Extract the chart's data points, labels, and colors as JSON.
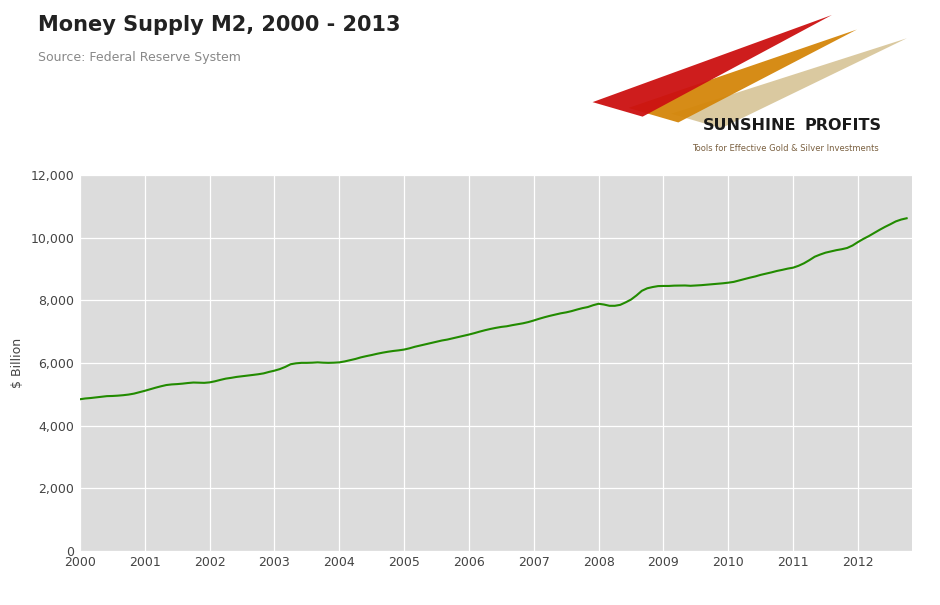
{
  "title": "Money Supply M2, 2000 - 2013",
  "source": "Source: Federal Reserve System",
  "ylabel": "$ Billion",
  "line_color": "#228B00",
  "bg_color": "#DCDCDC",
  "fig_bg_color": "#FFFFFF",
  "xlim": [
    2000,
    2012.83
  ],
  "ylim": [
    0,
    12000
  ],
  "yticks": [
    0,
    2000,
    4000,
    6000,
    8000,
    10000,
    12000
  ],
  "xticks": [
    2000,
    2001,
    2002,
    2003,
    2004,
    2005,
    2006,
    2007,
    2008,
    2009,
    2010,
    2011,
    2012
  ],
  "logo_text1": "SUNSHINE",
  "logo_text2": "PROFITS",
  "logo_subtext": "Tools for Effective Gold & Silver Investments",
  "data": {
    "x": [
      2000.0,
      2000.083,
      2000.167,
      2000.25,
      2000.333,
      2000.417,
      2000.5,
      2000.583,
      2000.667,
      2000.75,
      2000.833,
      2000.917,
      2001.0,
      2001.083,
      2001.167,
      2001.25,
      2001.333,
      2001.417,
      2001.5,
      2001.583,
      2001.667,
      2001.75,
      2001.833,
      2001.917,
      2002.0,
      2002.083,
      2002.167,
      2002.25,
      2002.333,
      2002.417,
      2002.5,
      2002.583,
      2002.667,
      2002.75,
      2002.833,
      2002.917,
      2003.0,
      2003.083,
      2003.167,
      2003.25,
      2003.333,
      2003.417,
      2003.5,
      2003.583,
      2003.667,
      2003.75,
      2003.833,
      2003.917,
      2004.0,
      2004.083,
      2004.167,
      2004.25,
      2004.333,
      2004.417,
      2004.5,
      2004.583,
      2004.667,
      2004.75,
      2004.833,
      2004.917,
      2005.0,
      2005.083,
      2005.167,
      2005.25,
      2005.333,
      2005.417,
      2005.5,
      2005.583,
      2005.667,
      2005.75,
      2005.833,
      2005.917,
      2006.0,
      2006.083,
      2006.167,
      2006.25,
      2006.333,
      2006.417,
      2006.5,
      2006.583,
      2006.667,
      2006.75,
      2006.833,
      2006.917,
      2007.0,
      2007.083,
      2007.167,
      2007.25,
      2007.333,
      2007.417,
      2007.5,
      2007.583,
      2007.667,
      2007.75,
      2007.833,
      2007.917,
      2008.0,
      2008.083,
      2008.167,
      2008.25,
      2008.333,
      2008.417,
      2008.5,
      2008.583,
      2008.667,
      2008.75,
      2008.833,
      2008.917,
      2009.0,
      2009.083,
      2009.167,
      2009.25,
      2009.333,
      2009.417,
      2009.5,
      2009.583,
      2009.667,
      2009.75,
      2009.833,
      2009.917,
      2010.0,
      2010.083,
      2010.167,
      2010.25,
      2010.333,
      2010.417,
      2010.5,
      2010.583,
      2010.667,
      2010.75,
      2010.833,
      2010.917,
      2011.0,
      2011.083,
      2011.167,
      2011.25,
      2011.333,
      2011.417,
      2011.5,
      2011.583,
      2011.667,
      2011.75,
      2011.833,
      2011.917,
      2012.0,
      2012.083,
      2012.167,
      2012.25,
      2012.333,
      2012.417,
      2012.5,
      2012.583,
      2012.667,
      2012.75
    ],
    "y": [
      4840,
      4865,
      4880,
      4900,
      4920,
      4940,
      4945,
      4955,
      4970,
      4990,
      5020,
      5065,
      5110,
      5160,
      5210,
      5255,
      5295,
      5315,
      5325,
      5340,
      5360,
      5375,
      5370,
      5365,
      5380,
      5415,
      5460,
      5500,
      5525,
      5555,
      5575,
      5598,
      5618,
      5640,
      5668,
      5715,
      5755,
      5805,
      5875,
      5960,
      5990,
      6005,
      6005,
      6010,
      6020,
      6010,
      6005,
      6010,
      6020,
      6050,
      6090,
      6130,
      6180,
      6220,
      6255,
      6295,
      6330,
      6360,
      6385,
      6405,
      6430,
      6470,
      6520,
      6560,
      6600,
      6640,
      6680,
      6720,
      6750,
      6790,
      6830,
      6870,
      6910,
      6955,
      7005,
      7050,
      7090,
      7125,
      7155,
      7175,
      7210,
      7240,
      7270,
      7310,
      7360,
      7415,
      7465,
      7510,
      7550,
      7590,
      7620,
      7660,
      7710,
      7755,
      7790,
      7850,
      7895,
      7870,
      7830,
      7830,
      7860,
      7940,
      8030,
      8160,
      8310,
      8390,
      8430,
      8460,
      8465,
      8465,
      8475,
      8478,
      8480,
      8470,
      8480,
      8490,
      8505,
      8520,
      8535,
      8550,
      8570,
      8595,
      8640,
      8685,
      8730,
      8770,
      8820,
      8860,
      8900,
      8945,
      8980,
      9020,
      9050,
      9110,
      9190,
      9290,
      9400,
      9470,
      9530,
      9570,
      9610,
      9640,
      9680,
      9760,
      9870,
      9970,
      10060,
      10160,
      10260,
      10355,
      10440,
      10530,
      10590,
      10630
    ]
  }
}
